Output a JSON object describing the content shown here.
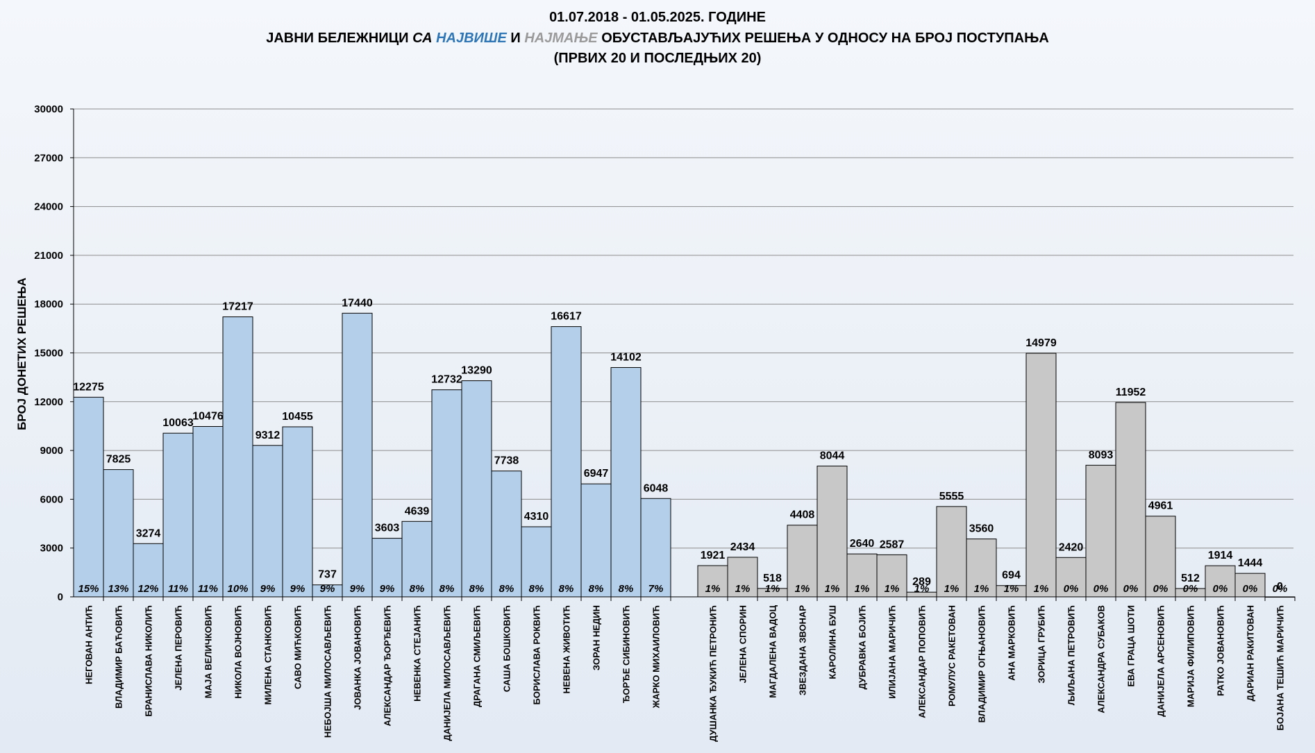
{
  "chart_data": {
    "type": "bar",
    "title": {
      "line1": "01.07.2018 - 01.05.2025. ГОДИНЕ",
      "line2": {
        "part1": "ЈАВНИ БЕЛЕЖНИЦИ ",
        "part2": "СА ",
        "part3": "НАЈВИШЕ",
        "part4": " И ",
        "part5": "НАЈМАЊЕ",
        "part6": " ОБУСТАВЉАЈУЋИХ РЕШЕЊА У ОДНОСУ НА БРОЈ ПОСТУПАЊА"
      },
      "line3": "(ПРВИХ 20 И ПОСЛЕДЊИХ 20)"
    },
    "ylabel": "БРОЈ ДОНЕТИХ РЕШЕЊА",
    "ylim": [
      0,
      30000
    ],
    "yticks": [
      0,
      3000,
      6000,
      9000,
      12000,
      15000,
      18000,
      21000,
      24000,
      27000,
      30000
    ],
    "grid": true,
    "colors": {
      "top": "#b4cfea",
      "bottom": "#c8c8c8",
      "accent_blue": "#2e75b6",
      "accent_gray": "#9a9a9a"
    },
    "groups": [
      {
        "name": "top",
        "bars": [
          {
            "label": "НЕГОВАН АНТИЋ",
            "value": 12275,
            "pct": "15%"
          },
          {
            "label": "ВЛАДИМИР БАЋОВИЋ",
            "value": 7825,
            "pct": "13%"
          },
          {
            "label": "БРАНИСЛАВА НИКОЛИЋ",
            "value": 3274,
            "pct": "12%"
          },
          {
            "label": "ЈЕЛЕНА ПЕРОВИЋ",
            "value": 10063,
            "pct": "11%"
          },
          {
            "label": "МАЈА ВЕЛИЧКОВИЋ",
            "value": 10476,
            "pct": "11%"
          },
          {
            "label": "НИКОЛА ВОЈНОВИЋ",
            "value": 17217,
            "pct": "10%"
          },
          {
            "label": "МИЛЕНА СТАНКОВИЋ",
            "value": 9312,
            "pct": "9%"
          },
          {
            "label": "САВО МИЋКОВИЋ",
            "value": 10455,
            "pct": "9%"
          },
          {
            "label": "НЕБОЈША МИЛОСАВЉЕВИЋ",
            "value": 737,
            "pct": "9%"
          },
          {
            "label": "ЈОВАНКА ЈОВАНОВИЋ",
            "value": 17440,
            "pct": "9%"
          },
          {
            "label": "АЛЕКСАНДАР ЂОРЂЕВИЋ",
            "value": 3603,
            "pct": "9%"
          },
          {
            "label": "НЕВЕНКА СТЕЈАНИЋ",
            "value": 4639,
            "pct": "8%"
          },
          {
            "label": "ДАНИЈЕЛА МИЛОСАВЉЕВИЋ",
            "value": 12732,
            "pct": "8%"
          },
          {
            "label": "ДРАГАНА СМИЉЕВИЋ",
            "value": 13290,
            "pct": "8%"
          },
          {
            "label": "САША БОШКОВИЋ",
            "value": 7738,
            "pct": "8%"
          },
          {
            "label": "БОРИСЛАВА РОКВИЋ",
            "value": 4310,
            "pct": "8%"
          },
          {
            "label": "НЕВЕНА ЖИВОТИЋ",
            "value": 16617,
            "pct": "8%"
          },
          {
            "label": "ЗОРАН НЕДИН",
            "value": 6947,
            "pct": "8%"
          },
          {
            "label": "ЂОРЂЕ СИБИНОВИЋ",
            "value": 14102,
            "pct": "8%"
          },
          {
            "label": "ЖАРКО МИХАИЛОВИЋ",
            "value": 6048,
            "pct": "7%"
          }
        ]
      },
      {
        "name": "bottom",
        "bars": [
          {
            "label": "ДУШАНКА ЂУКИЋ ПЕТРОНИЋ",
            "value": 1921,
            "pct": "1%"
          },
          {
            "label": "ЈЕЛЕНА СПОРИН",
            "value": 2434,
            "pct": "1%"
          },
          {
            "label": "МАГДАЛЕНА ВАДОЦ",
            "value": 518,
            "pct": "1%"
          },
          {
            "label": "ЗВЕЗДАНА ЗВОНАР",
            "value": 4408,
            "pct": "1%"
          },
          {
            "label": "КАРОЛИНА БУШ",
            "value": 8044,
            "pct": "1%"
          },
          {
            "label": "ДУБРАВКА БОЈИЋ",
            "value": 2640,
            "pct": "1%"
          },
          {
            "label": "ИЛИЈАНА МАРИЧИЋ",
            "value": 2587,
            "pct": "1%"
          },
          {
            "label": "АЛЕКСАНДАР ПОПОВИЋ",
            "value": 289,
            "pct": "1%"
          },
          {
            "label": "РОМУЛУС РАКЕТОВАН",
            "value": 5555,
            "pct": "1%"
          },
          {
            "label": "ВЛАДИМИР ОГЊАНОВИЋ",
            "value": 3560,
            "pct": "1%"
          },
          {
            "label": "АНА МАРКОВИЋ",
            "value": 694,
            "pct": "1%"
          },
          {
            "label": "ЗОРИЦА ГРУБИЋ",
            "value": 14979,
            "pct": "1%"
          },
          {
            "label": "ЉИЉАНА ПЕТРОВИЋ",
            "value": 2420,
            "pct": "0%"
          },
          {
            "label": "АЛЕКСАНДРА СУБАКОВ",
            "value": 8093,
            "pct": "0%"
          },
          {
            "label": "ЕВА ГРАЦА ШОТИ",
            "value": 11952,
            "pct": "0%"
          },
          {
            "label": "ДАНИЈЕЛА АРСЕНОВИЋ",
            "value": 4961,
            "pct": "0%"
          },
          {
            "label": "МАРИЈА ФИЛИПОВИЋ",
            "value": 512,
            "pct": "0%"
          },
          {
            "label": "РАТКО ЈОВАНОВИЋ",
            "value": 1914,
            "pct": "0%"
          },
          {
            "label": "ДАРИАН РАКИТОВАН",
            "value": 1444,
            "pct": "0%"
          },
          {
            "label": "БОЈАНА ТЕШИЋ МАРИЧИЋ",
            "value": 0,
            "pct": "0%"
          }
        ]
      }
    ]
  }
}
